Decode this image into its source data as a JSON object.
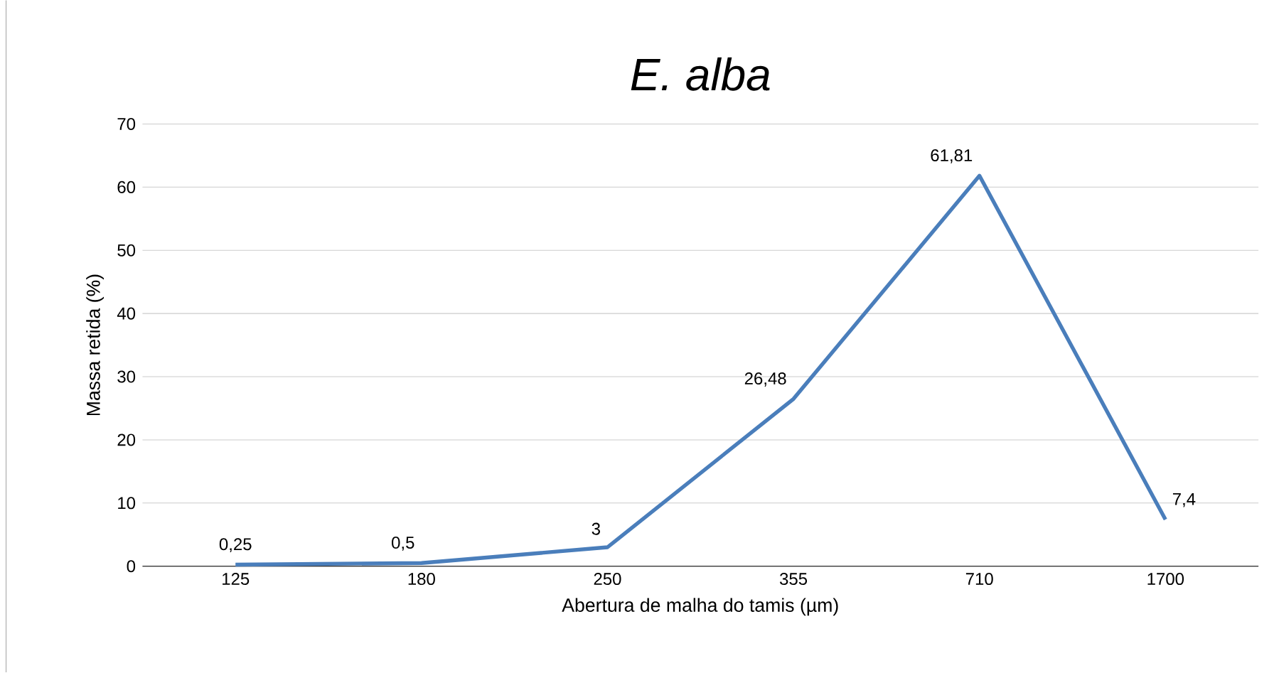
{
  "chart_data": {
    "type": "line",
    "title": "E. alba",
    "xlabel": "Abertura de malha do tamis (µm)",
    "ylabel": "Massa retida (%)",
    "categories": [
      "125",
      "180",
      "250",
      "355",
      "710",
      "1700"
    ],
    "series": [
      {
        "color": "#4a7ebb",
        "values": [
          0.25,
          0.5,
          3,
          26.48,
          61.81,
          7.4
        ],
        "value_labels": [
          "0,25",
          "0,5",
          "3",
          "26,48",
          "61,81",
          "7,4"
        ]
      }
    ],
    "ylim": [
      0,
      70
    ],
    "yticks": [
      0,
      10,
      20,
      30,
      40,
      50,
      60,
      70
    ],
    "grid": "y",
    "marker": "none",
    "line_style": "solid"
  }
}
